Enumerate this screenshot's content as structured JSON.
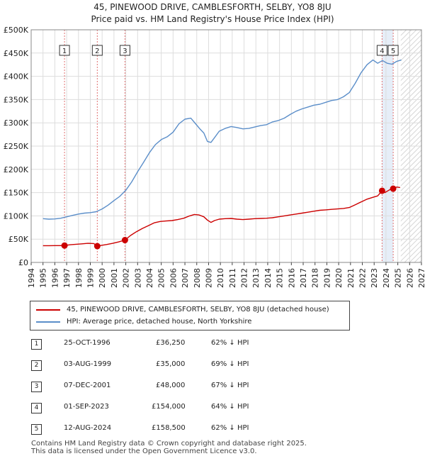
{
  "title_line1": "45, PINEWOOD DRIVE, CAMBLESFORTH, SELBY, YO8 8JU",
  "title_line2": "Price paid vs. HM Land Registry's House Price Index (HPI)",
  "chart_data": {
    "type": "line",
    "ylim": [
      0,
      500000
    ],
    "xlim": [
      1994,
      2027
    ],
    "y_ticks": [
      0,
      50000,
      100000,
      150000,
      200000,
      250000,
      300000,
      350000,
      400000,
      450000,
      500000
    ],
    "y_tick_labels": [
      "£0",
      "£50K",
      "£100K",
      "£150K",
      "£200K",
      "£250K",
      "£300K",
      "£350K",
      "£400K",
      "£450K",
      "£500K"
    ],
    "x_ticks": [
      "1994",
      "1995",
      "1996",
      "1997",
      "1998",
      "1999",
      "2000",
      "2001",
      "2002",
      "2003",
      "2004",
      "2005",
      "2006",
      "2007",
      "2008",
      "2009",
      "2010",
      "2011",
      "2012",
      "2013",
      "2014",
      "2015",
      "2016",
      "2017",
      "2018",
      "2019",
      "2020",
      "2021",
      "2022",
      "2023",
      "2024",
      "2025",
      "2026",
      "2027"
    ],
    "hatched_after": 2025.25,
    "series": [
      {
        "name": "45, PINEWOOD DRIVE, CAMBLESFORTH, SELBY, YO8 8JU (detached house)",
        "color": "#cc0000",
        "x": [
          1995.0,
          1995.5,
          1996.0,
          1996.5,
          1996.82,
          1997.3,
          1997.8,
          1998.3,
          1998.8,
          1999.3,
          1999.59,
          1999.9,
          2000.4,
          2000.9,
          2001.4,
          2001.93,
          2002.4,
          2002.9,
          2003.4,
          2003.9,
          2004.4,
          2004.9,
          2005.4,
          2005.9,
          2006.4,
          2006.9,
          2007.4,
          2007.8,
          2008.2,
          2008.6,
          2008.9,
          2009.2,
          2009.5,
          2009.9,
          2010.4,
          2010.9,
          2011.4,
          2011.9,
          2012.4,
          2012.9,
          2013.4,
          2013.9,
          2014.4,
          2014.9,
          2015.4,
          2015.9,
          2016.4,
          2016.9,
          2017.4,
          2017.9,
          2018.4,
          2018.9,
          2019.4,
          2019.9,
          2020.4,
          2020.9,
          2021.4,
          2021.9,
          2022.4,
          2022.9,
          2023.3,
          2023.67,
          2023.9,
          2024.3,
          2024.61,
          2024.9,
          2025.2
        ],
        "values": [
          36000,
          36000,
          36100,
          36200,
          36250,
          38000,
          39000,
          40000,
          41000,
          40500,
          35000,
          36500,
          38500,
          41000,
          44000,
          48000,
          58000,
          66000,
          73000,
          79000,
          85000,
          88000,
          89000,
          90000,
          92000,
          95000,
          100000,
          103000,
          102000,
          98000,
          91000,
          86000,
          90000,
          93000,
          94000,
          94500,
          93000,
          92000,
          93000,
          94000,
          94500,
          95000,
          96000,
          98000,
          100000,
          102000,
          104000,
          106000,
          108000,
          110000,
          112000,
          113000,
          114000,
          115000,
          116000,
          118000,
          124000,
          130000,
          136000,
          140000,
          143000,
          154000,
          150000,
          156000,
          158500,
          162000,
          161000
        ]
      },
      {
        "name": "HPI: Average price, detached house, North Yorkshire",
        "color": "#5b8ec9",
        "x": [
          1995.0,
          1995.5,
          1996.0,
          1996.5,
          1997.0,
          1997.5,
          1998.0,
          1998.5,
          1999.0,
          1999.5,
          2000.0,
          2000.5,
          2001.0,
          2001.5,
          2002.0,
          2002.5,
          2003.0,
          2003.5,
          2004.0,
          2004.5,
          2005.0,
          2005.5,
          2006.0,
          2006.5,
          2007.0,
          2007.5,
          2007.9,
          2008.3,
          2008.6,
          2008.9,
          2009.2,
          2009.5,
          2009.9,
          2010.4,
          2010.9,
          2011.4,
          2011.9,
          2012.4,
          2012.9,
          2013.4,
          2013.9,
          2014.4,
          2014.9,
          2015.4,
          2015.9,
          2016.4,
          2016.9,
          2017.4,
          2017.9,
          2018.4,
          2018.9,
          2019.4,
          2019.9,
          2020.4,
          2020.9,
          2021.4,
          2021.9,
          2022.4,
          2022.9,
          2023.3,
          2023.7,
          2024.1,
          2024.5,
          2024.9,
          2025.3
        ],
        "values": [
          94000,
          93000,
          93500,
          95000,
          98000,
          101000,
          104000,
          106000,
          107000,
          109000,
          115000,
          123000,
          133000,
          142000,
          155000,
          173000,
          195000,
          215000,
          236000,
          253000,
          264000,
          270000,
          280000,
          298000,
          308000,
          310000,
          298000,
          286000,
          278000,
          260000,
          258000,
          268000,
          282000,
          288000,
          292000,
          290000,
          287000,
          288000,
          291000,
          294000,
          296000,
          302000,
          305000,
          310000,
          318000,
          325000,
          330000,
          334000,
          338000,
          340000,
          344000,
          348000,
          350000,
          356000,
          365000,
          385000,
          408000,
          425000,
          435000,
          428000,
          434000,
          428000,
          426000,
          432000,
          435000
        ]
      }
    ],
    "sales": [
      {
        "label": "1",
        "x": 1996.82,
        "value": 36250
      },
      {
        "label": "2",
        "x": 1999.59,
        "value": 35000
      },
      {
        "label": "3",
        "x": 2001.93,
        "value": 48000
      },
      {
        "label": "4",
        "x": 2023.67,
        "value": 154000
      },
      {
        "label": "5",
        "x": 2024.61,
        "value": 158500
      }
    ]
  },
  "legend": {
    "red_label": "45, PINEWOOD DRIVE, CAMBLESFORTH, SELBY, YO8 8JU (detached house)",
    "blue_label": "HPI: Average price, detached house, North Yorkshire",
    "red_color": "#cc0000",
    "blue_color": "#5b8ec9"
  },
  "sales_table": [
    {
      "num": "1",
      "date": "25-OCT-1996",
      "price": "£36,250",
      "hpi": "62% ↓ HPI"
    },
    {
      "num": "2",
      "date": "03-AUG-1999",
      "price": "£35,000",
      "hpi": "69% ↓ HPI"
    },
    {
      "num": "3",
      "date": "07-DEC-2001",
      "price": "£48,000",
      "hpi": "67% ↓ HPI"
    },
    {
      "num": "4",
      "date": "01-SEP-2023",
      "price": "£154,000",
      "hpi": "64% ↓ HPI"
    },
    {
      "num": "5",
      "date": "12-AUG-2024",
      "price": "£158,500",
      "hpi": "62% ↓ HPI"
    }
  ],
  "footer_line1": "Contains HM Land Registry data © Crown copyright and database right 2025.",
  "footer_line2": "This data is licensed under the Open Government Licence v3.0."
}
